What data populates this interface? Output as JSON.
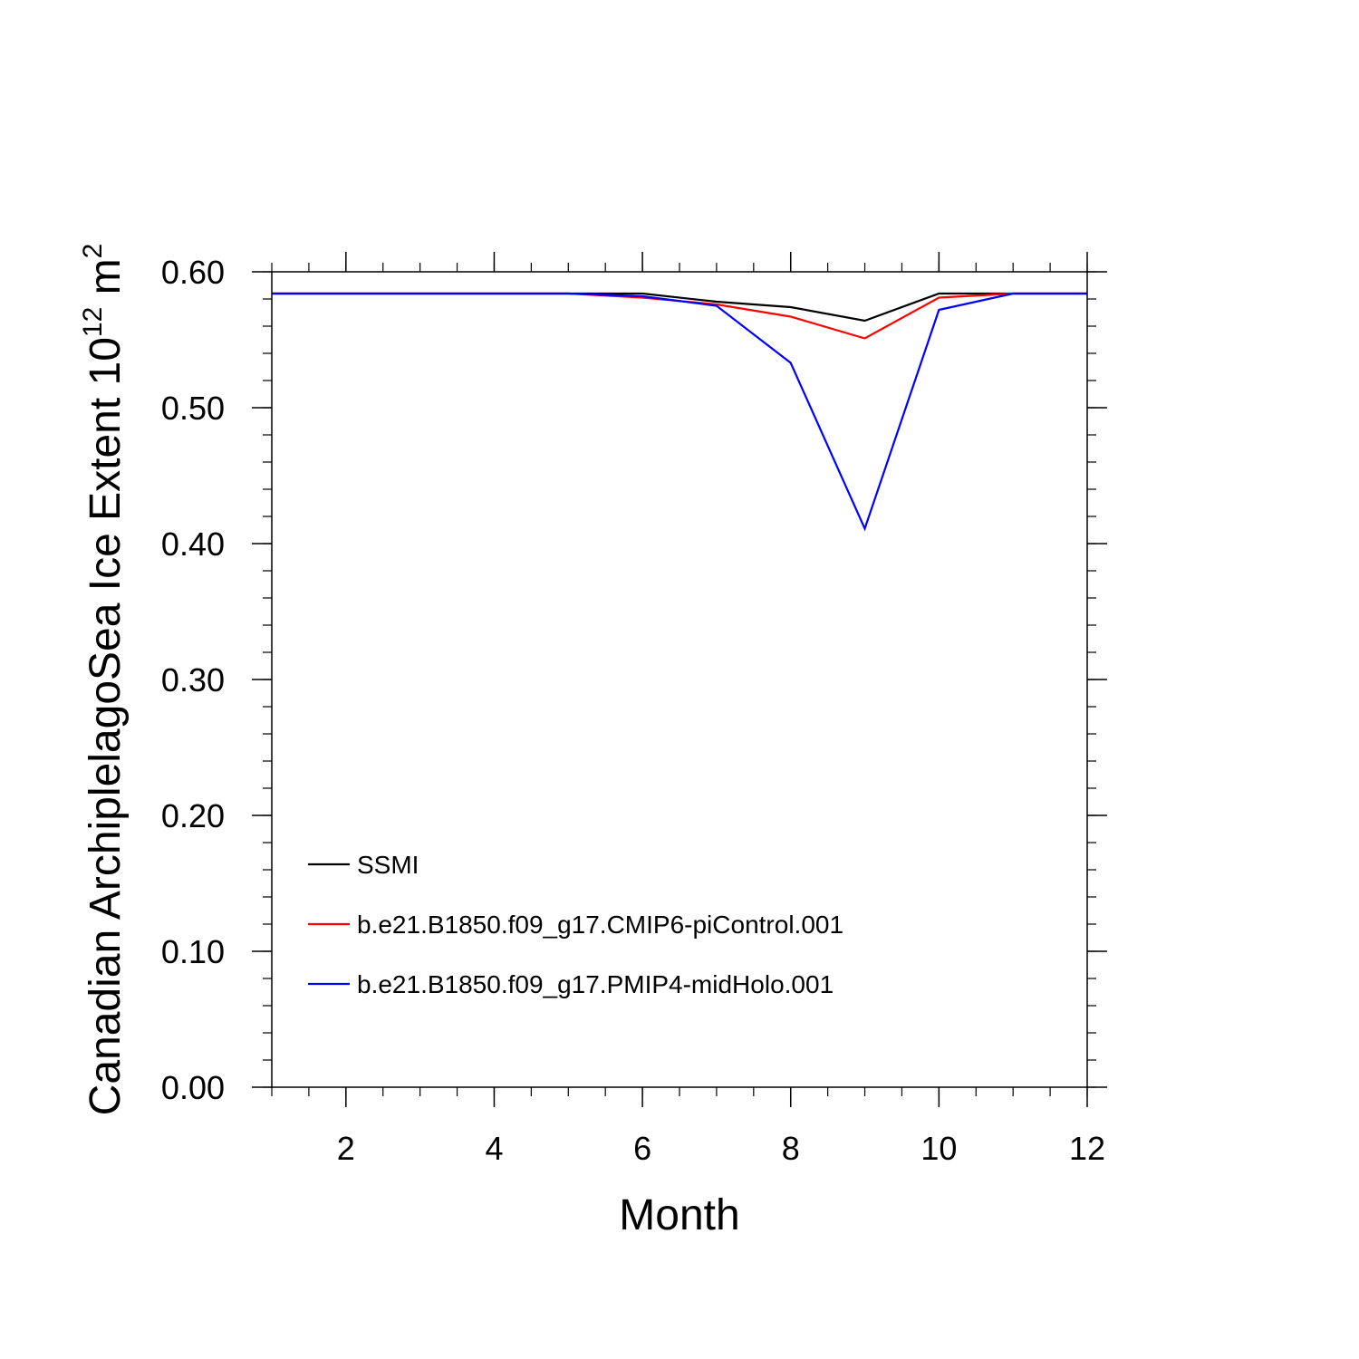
{
  "chart_data": {
    "type": "line",
    "title": "",
    "xlabel": "Month",
    "ylabel_parts": {
      "main": "Canadian ArchiplelagoSea Ice Extent 10",
      "exponent": "12",
      "unit": " m",
      "unit_exponent": "2"
    },
    "xlim": [
      1,
      12
    ],
    "ylim": [
      0,
      0.6
    ],
    "x_ticks": [
      2,
      4,
      6,
      8,
      10,
      12
    ],
    "x_tick_labels": [
      "2",
      "4",
      "6",
      "8",
      "10",
      "12"
    ],
    "y_ticks": [
      0,
      0.1,
      0.2,
      0.3,
      0.4,
      0.5,
      0.6
    ],
    "y_tick_labels": [
      "0.00",
      "0.10",
      "0.20",
      "0.30",
      "0.40",
      "0.50",
      "0.60"
    ],
    "grid": false,
    "legend_position": "bottom-left",
    "x": [
      1,
      2,
      3,
      4,
      5,
      6,
      7,
      8,
      9,
      10,
      11,
      12
    ],
    "series": [
      {
        "name": "SSMI",
        "color": "#000000",
        "values": [
          0.584,
          0.584,
          0.584,
          0.584,
          0.584,
          0.584,
          0.578,
          0.574,
          0.564,
          0.584,
          0.584,
          0.584
        ]
      },
      {
        "name": "b.e21.B1850.f09_g17.CMIP6-piControl.001",
        "color": "#ff0000",
        "values": [
          0.584,
          0.584,
          0.584,
          0.584,
          0.584,
          0.581,
          0.576,
          0.567,
          0.551,
          0.581,
          0.584,
          0.584
        ]
      },
      {
        "name": "b.e21.B1850.f09_g17.PMIP4-midHolo.001",
        "color": "#0000ff",
        "values": [
          0.584,
          0.584,
          0.584,
          0.584,
          0.584,
          0.582,
          0.575,
          0.533,
          0.411,
          0.572,
          0.584,
          0.584
        ]
      }
    ]
  }
}
